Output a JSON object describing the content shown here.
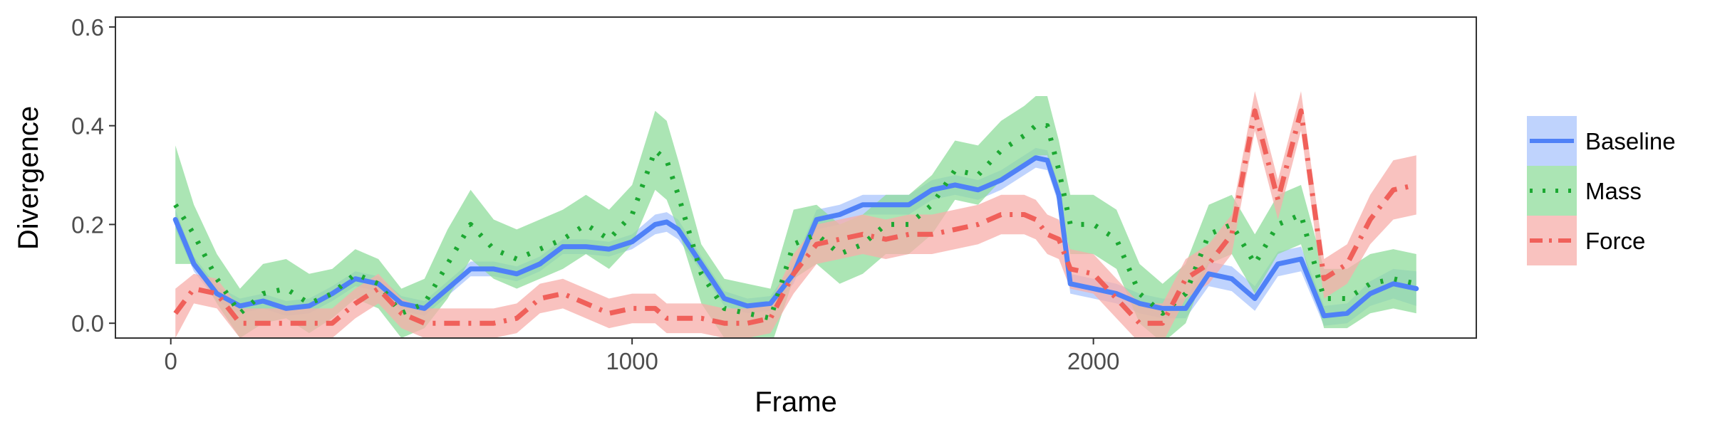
{
  "chart_data": {
    "type": "line",
    "title": "",
    "xlabel": "Frame",
    "ylabel": "Divergence",
    "xlim": [
      -120,
      2830
    ],
    "ylim": [
      -0.03,
      0.62
    ],
    "xticks": [
      0,
      1000,
      2000
    ],
    "xtick_labels": [
      "0",
      "1000",
      "2000"
    ],
    "yticks": [
      0.0,
      0.2,
      0.4,
      0.6
    ],
    "ytick_labels": [
      "0.0",
      "0.2",
      "0.4",
      "0.6"
    ],
    "grid": false,
    "legend_position": "right",
    "x": [
      10,
      50,
      100,
      150,
      200,
      250,
      300,
      350,
      400,
      450,
      500,
      550,
      600,
      650,
      700,
      750,
      800,
      850,
      900,
      950,
      1000,
      1050,
      1075,
      1100,
      1150,
      1200,
      1250,
      1300,
      1350,
      1400,
      1450,
      1500,
      1550,
      1600,
      1650,
      1700,
      1750,
      1800,
      1850,
      1875,
      1900,
      1925,
      1950,
      2000,
      2050,
      2100,
      2150,
      2200,
      2250,
      2300,
      2350,
      2400,
      2450,
      2500,
      2550,
      2600,
      2650,
      2700
    ],
    "series": [
      {
        "name": "Baseline",
        "color": "#4f81f7",
        "band_color": "#a9c4fc",
        "line_style": "solid",
        "values": [
          0.21,
          0.12,
          0.06,
          0.035,
          0.045,
          0.03,
          0.035,
          0.06,
          0.09,
          0.08,
          0.04,
          0.03,
          0.07,
          0.11,
          0.11,
          0.1,
          0.12,
          0.155,
          0.155,
          0.15,
          0.165,
          0.2,
          0.205,
          0.19,
          0.12,
          0.05,
          0.035,
          0.04,
          0.1,
          0.21,
          0.22,
          0.24,
          0.24,
          0.24,
          0.27,
          0.28,
          0.27,
          0.29,
          0.32,
          0.335,
          0.33,
          0.26,
          0.08,
          0.07,
          0.06,
          0.04,
          0.03,
          0.03,
          0.1,
          0.09,
          0.05,
          0.12,
          0.13,
          0.015,
          0.02,
          0.06,
          0.08,
          0.07
        ],
        "errors": [
          0.02,
          0.015,
          0.015,
          0.015,
          0.015,
          0.015,
          0.015,
          0.015,
          0.015,
          0.015,
          0.015,
          0.015,
          0.015,
          0.015,
          0.015,
          0.015,
          0.015,
          0.015,
          0.015,
          0.015,
          0.015,
          0.02,
          0.02,
          0.02,
          0.015,
          0.015,
          0.015,
          0.015,
          0.02,
          0.02,
          0.02,
          0.02,
          0.02,
          0.02,
          0.02,
          0.02,
          0.02,
          0.02,
          0.02,
          0.02,
          0.02,
          0.02,
          0.02,
          0.02,
          0.02,
          0.02,
          0.02,
          0.02,
          0.025,
          0.025,
          0.025,
          0.025,
          0.025,
          0.02,
          0.02,
          0.025,
          0.03,
          0.035
        ]
      },
      {
        "name": "Mass",
        "color": "#1ca832",
        "band_color": "#8fdc9b",
        "line_style": "dotted",
        "values": [
          0.24,
          0.18,
          0.09,
          0.02,
          0.06,
          0.07,
          0.04,
          0.06,
          0.1,
          0.08,
          0.02,
          0.04,
          0.12,
          0.2,
          0.15,
          0.13,
          0.15,
          0.17,
          0.2,
          0.17,
          0.22,
          0.35,
          0.33,
          0.26,
          0.1,
          0.03,
          0.02,
          0.01,
          0.16,
          0.18,
          0.14,
          0.16,
          0.2,
          0.2,
          0.24,
          0.31,
          0.3,
          0.35,
          0.38,
          0.4,
          0.4,
          0.31,
          0.2,
          0.2,
          0.17,
          0.06,
          0.02,
          0.06,
          0.18,
          0.2,
          0.12,
          0.2,
          0.22,
          0.05,
          0.05,
          0.08,
          0.09,
          0.08
        ],
        "errors": [
          0.12,
          0.06,
          0.05,
          0.05,
          0.06,
          0.06,
          0.06,
          0.05,
          0.05,
          0.05,
          0.05,
          0.05,
          0.07,
          0.07,
          0.06,
          0.06,
          0.06,
          0.06,
          0.06,
          0.06,
          0.06,
          0.08,
          0.08,
          0.07,
          0.06,
          0.06,
          0.06,
          0.06,
          0.07,
          0.06,
          0.06,
          0.06,
          0.06,
          0.06,
          0.06,
          0.06,
          0.06,
          0.06,
          0.06,
          0.06,
          0.06,
          0.06,
          0.06,
          0.06,
          0.06,
          0.06,
          0.06,
          0.06,
          0.06,
          0.06,
          0.06,
          0.06,
          0.06,
          0.06,
          0.06,
          0.06,
          0.06,
          0.06
        ]
      },
      {
        "name": "Force",
        "color": "#f0605a",
        "band_color": "#f7aeaa",
        "line_style": "dashdot",
        "values": [
          0.02,
          0.07,
          0.06,
          0.0,
          0.0,
          0.0,
          0.0,
          0.0,
          0.04,
          0.07,
          0.02,
          0.0,
          0.0,
          0.0,
          0.0,
          0.01,
          0.05,
          0.06,
          0.04,
          0.02,
          0.03,
          0.03,
          0.01,
          0.01,
          0.01,
          0.0,
          0.0,
          0.01,
          0.1,
          0.16,
          0.17,
          0.18,
          0.17,
          0.18,
          0.18,
          0.19,
          0.2,
          0.22,
          0.22,
          0.21,
          0.18,
          0.17,
          0.11,
          0.1,
          0.05,
          0.0,
          0.0,
          0.09,
          0.12,
          0.18,
          0.43,
          0.25,
          0.43,
          0.09,
          0.12,
          0.21,
          0.27,
          0.28
        ],
        "errors": [
          0.05,
          0.03,
          0.03,
          0.03,
          0.03,
          0.03,
          0.03,
          0.03,
          0.03,
          0.03,
          0.03,
          0.03,
          0.03,
          0.03,
          0.03,
          0.03,
          0.03,
          0.03,
          0.03,
          0.03,
          0.03,
          0.03,
          0.03,
          0.03,
          0.03,
          0.03,
          0.03,
          0.03,
          0.04,
          0.04,
          0.04,
          0.04,
          0.04,
          0.04,
          0.04,
          0.04,
          0.04,
          0.04,
          0.04,
          0.04,
          0.04,
          0.04,
          0.04,
          0.04,
          0.04,
          0.04,
          0.04,
          0.04,
          0.04,
          0.04,
          0.04,
          0.04,
          0.04,
          0.04,
          0.04,
          0.05,
          0.06,
          0.06
        ]
      }
    ]
  }
}
